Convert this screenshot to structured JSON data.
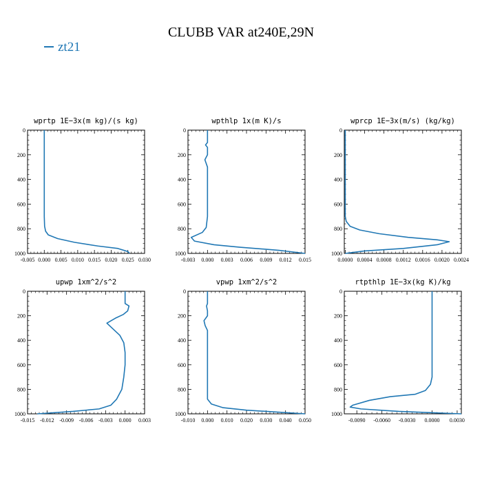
{
  "figure": {
    "title": "CLUBB VAR at240E,29N",
    "legend": [
      {
        "label": "zt21",
        "color": "#1f77b4"
      }
    ]
  },
  "chart_data": [
    {
      "type": "line",
      "title": "wprtp   1E−3x(m kg)/(s kg)",
      "xlim": [
        -0.005,
        0.03
      ],
      "xticks": [
        -0.005,
        0.0,
        0.005,
        0.01,
        0.015,
        0.02,
        0.025,
        0.03
      ],
      "xticklabels": [
        "-0.005",
        "0.000",
        "0.005",
        "0.010",
        "0.015",
        "0.020",
        "0.025",
        "0.030"
      ],
      "ylim": [
        1000,
        0
      ],
      "yticks": [
        0,
        200,
        400,
        600,
        800,
        1000
      ],
      "yticklabels": [
        "0",
        "200",
        "400",
        "600",
        "800",
        "1000"
      ],
      "series": [
        {
          "name": "zt21",
          "color": "#1f77b4",
          "points": [
            [
              0.0,
              0
            ],
            [
              0.0,
              200
            ],
            [
              0.0,
              400
            ],
            [
              0.0,
              600
            ],
            [
              0.0,
              700
            ],
            [
              0.0001,
              780
            ],
            [
              0.0004,
              820
            ],
            [
              0.0012,
              850
            ],
            [
              0.004,
              880
            ],
            [
              0.009,
              910
            ],
            [
              0.016,
              940
            ],
            [
              0.022,
              960
            ],
            [
              0.025,
              985
            ],
            [
              0.0255,
              1000
            ]
          ]
        }
      ]
    },
    {
      "type": "line",
      "title": "wpthlp   1x(m K)/s",
      "xlim": [
        -0.003,
        0.015
      ],
      "xticks": [
        -0.003,
        0.0,
        0.003,
        0.006,
        0.009,
        0.012,
        0.015
      ],
      "xticklabels": [
        "-0.003",
        "0.000",
        "0.003",
        "0.006",
        "0.009",
        "0.012",
        "0.015"
      ],
      "ylim": [
        1000,
        0
      ],
      "yticks": [
        0,
        200,
        400,
        600,
        800,
        1000
      ],
      "yticklabels": [
        "0",
        "200",
        "400",
        "600",
        "800",
        "1000"
      ],
      "series": [
        {
          "name": "zt21",
          "color": "#1f77b4",
          "points": [
            [
              0.0,
              0
            ],
            [
              0.0,
              100
            ],
            [
              -0.0003,
              120
            ],
            [
              0.0,
              140
            ],
            [
              0.0,
              200
            ],
            [
              -0.0004,
              240
            ],
            [
              0.0,
              300
            ],
            [
              0.0,
              500
            ],
            [
              0.0,
              700
            ],
            [
              -0.0002,
              790
            ],
            [
              -0.0008,
              830
            ],
            [
              -0.0025,
              870
            ],
            [
              -0.002,
              900
            ],
            [
              0.001,
              930
            ],
            [
              0.005,
              950
            ],
            [
              0.011,
              975
            ],
            [
              0.015,
              1000
            ]
          ]
        }
      ]
    },
    {
      "type": "line",
      "title": "wprcp   1E−3x(m/s) (kg/kg)",
      "xlim": [
        -2e-05,
        0.0024
      ],
      "xticks": [
        0.0,
        0.0004,
        0.0008,
        0.0012,
        0.0016,
        0.002,
        0.0024
      ],
      "xticklabels": [
        "0.0000",
        "0.0004",
        "0.0008",
        "0.0012",
        "0.0016",
        "0.0020",
        "0.0024"
      ],
      "ylim": [
        1000,
        0
      ],
      "yticks": [
        0,
        200,
        400,
        600,
        800,
        1000
      ],
      "yticklabels": [
        "0",
        "200",
        "400",
        "600",
        "800",
        "1000"
      ],
      "series": [
        {
          "name": "zt21",
          "color": "#1f77b4",
          "points": [
            [
              0.0,
              0
            ],
            [
              0.0,
              400
            ],
            [
              0.0,
              700
            ],
            [
              2e-05,
              740
            ],
            [
              0.0001,
              780
            ],
            [
              0.0003,
              810
            ],
            [
              0.0007,
              840
            ],
            [
              0.0013,
              870
            ],
            [
              0.0019,
              890
            ],
            [
              0.00215,
              905
            ],
            [
              0.0019,
              930
            ],
            [
              0.0012,
              960
            ],
            [
              0.0004,
              980
            ],
            [
              0.0,
              1000
            ]
          ]
        }
      ]
    },
    {
      "type": "line",
      "title": "upwp   1xm^2/s^2",
      "xlim": [
        -0.015,
        0.003
      ],
      "xticks": [
        -0.015,
        -0.012,
        -0.009,
        -0.006,
        -0.003,
        0.0,
        0.003
      ],
      "xticklabels": [
        "-0.015",
        "-0.012",
        "-0.009",
        "-0.006",
        "-0.003",
        "0.000",
        "0.003"
      ],
      "ylim": [
        1000,
        0
      ],
      "yticks": [
        0,
        200,
        400,
        600,
        800,
        1000
      ],
      "yticklabels": [
        "0",
        "200",
        "400",
        "600",
        "800",
        "1000"
      ],
      "series": [
        {
          "name": "zt21",
          "color": "#1f77b4",
          "points": [
            [
              0.0,
              0
            ],
            [
              0.0,
              100
            ],
            [
              0.0006,
              120
            ],
            [
              0.0004,
              160
            ],
            [
              -0.0003,
              190
            ],
            [
              -0.0015,
              220
            ],
            [
              -0.0028,
              260
            ],
            [
              -0.002,
              300
            ],
            [
              -0.0008,
              360
            ],
            [
              -0.0002,
              420
            ],
            [
              0.0,
              500
            ],
            [
              0.0,
              600
            ],
            [
              -0.0002,
              700
            ],
            [
              -0.0005,
              800
            ],
            [
              -0.0013,
              880
            ],
            [
              -0.0022,
              930
            ],
            [
              -0.004,
              960
            ],
            [
              -0.008,
              980
            ],
            [
              -0.0135,
              1000
            ]
          ]
        }
      ]
    },
    {
      "type": "line",
      "title": "vpwp   1xm^2/s^2",
      "xlim": [
        -0.01,
        0.05
      ],
      "xticks": [
        -0.01,
        0.0,
        0.01,
        0.02,
        0.03,
        0.04,
        0.05
      ],
      "xticklabels": [
        "-0.010",
        "0.000",
        "0.010",
        "0.020",
        "0.030",
        "0.040",
        "0.050"
      ],
      "ylim": [
        1000,
        0
      ],
      "yticks": [
        0,
        200,
        400,
        600,
        800,
        1000
      ],
      "yticklabels": [
        "0",
        "200",
        "400",
        "600",
        "800",
        "1000"
      ],
      "series": [
        {
          "name": "zt21",
          "color": "#1f77b4",
          "points": [
            [
              0.0,
              0
            ],
            [
              0.0,
              100
            ],
            [
              -0.0005,
              120
            ],
            [
              0.0,
              160
            ],
            [
              0.0,
              200
            ],
            [
              -0.0018,
              240
            ],
            [
              -0.0012,
              280
            ],
            [
              0.0,
              320
            ],
            [
              0.0,
              500
            ],
            [
              0.0,
              700
            ],
            [
              0.0,
              880
            ],
            [
              0.002,
              920
            ],
            [
              0.008,
              950
            ],
            [
              0.02,
              970
            ],
            [
              0.035,
              985
            ],
            [
              0.05,
              1000
            ]
          ]
        }
      ]
    },
    {
      "type": "line",
      "title": "rtpthlp   1E−3x(kg K)/kg",
      "xlim": [
        -0.0105,
        0.0035
      ],
      "xticks": [
        -0.009,
        -0.006,
        -0.003,
        0.0,
        0.003
      ],
      "xticklabels": [
        "-0.0090",
        "-0.0060",
        "-0.0030",
        "0.0000",
        "0.0030"
      ],
      "ylim": [
        1000,
        0
      ],
      "yticks": [
        0,
        200,
        400,
        600,
        800,
        1000
      ],
      "yticklabels": [
        "0",
        "200",
        "400",
        "600",
        "800",
        "1000"
      ],
      "series": [
        {
          "name": "zt21",
          "color": "#1f77b4",
          "points": [
            [
              0.0,
              0
            ],
            [
              0.0,
              300
            ],
            [
              0.0,
              500
            ],
            [
              0.0,
              700
            ],
            [
              -0.0002,
              760
            ],
            [
              -0.0008,
              810
            ],
            [
              -0.002,
              840
            ],
            [
              -0.005,
              860
            ],
            [
              -0.0075,
              890
            ],
            [
              -0.0095,
              930
            ],
            [
              -0.0098,
              945
            ],
            [
              -0.0085,
              960
            ],
            [
              -0.004,
              980
            ],
            [
              0.0035,
              1000
            ]
          ]
        }
      ]
    }
  ]
}
